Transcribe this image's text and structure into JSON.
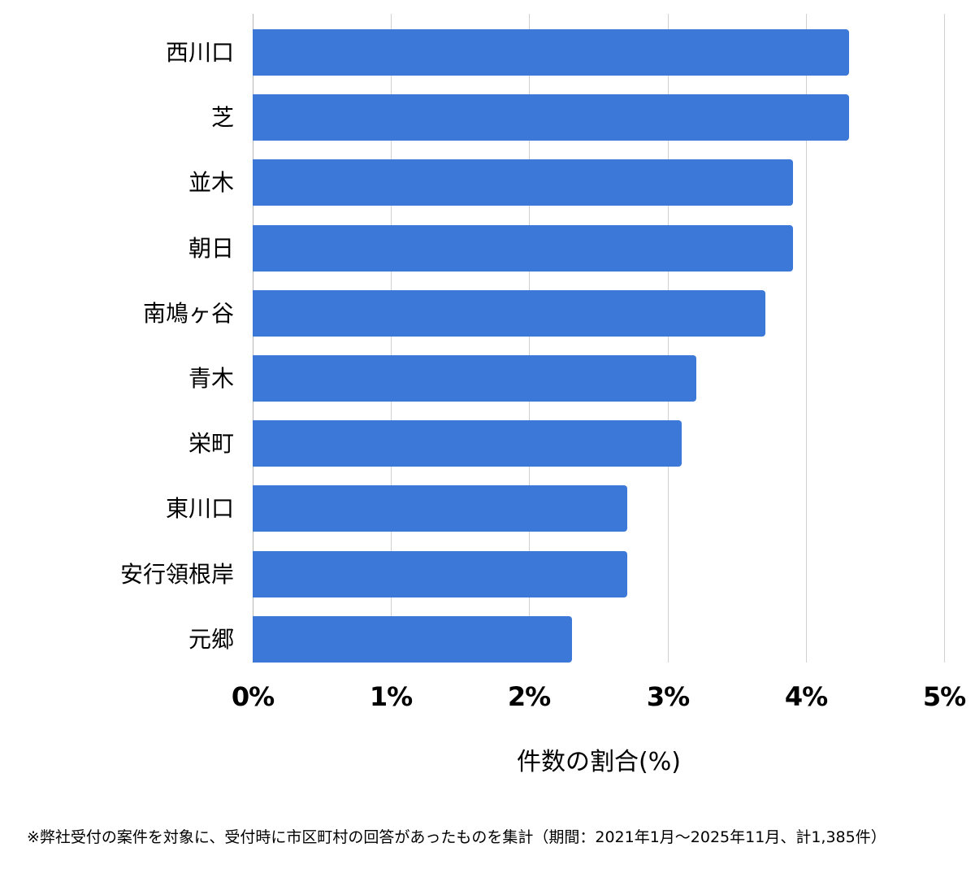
{
  "chart_data": {
    "type": "bar",
    "orientation": "horizontal",
    "categories": [
      "西川口",
      "芝",
      "並木",
      "朝日",
      "南鳩ヶ谷",
      "青木",
      "栄町",
      "東川口",
      "安行領根岸",
      "元郷"
    ],
    "values": [
      4.31,
      4.31,
      3.91,
      3.91,
      3.71,
      3.21,
      3.1,
      2.71,
      2.71,
      2.31
    ],
    "title": "",
    "xlabel": "件数の割合(%)",
    "ylabel": "",
    "xlim": [
      0,
      5
    ],
    "x_ticks": [
      "0%",
      "1%",
      "2%",
      "3%",
      "4%",
      "5%"
    ],
    "grid": true,
    "legend": null,
    "bar_color": "#3c78d8"
  },
  "footnote": "※弊社受付の案件を対象に、受付時に市区町村の回答があったものを集計（期間：2021年1月～2025年11月、計1,385件）"
}
